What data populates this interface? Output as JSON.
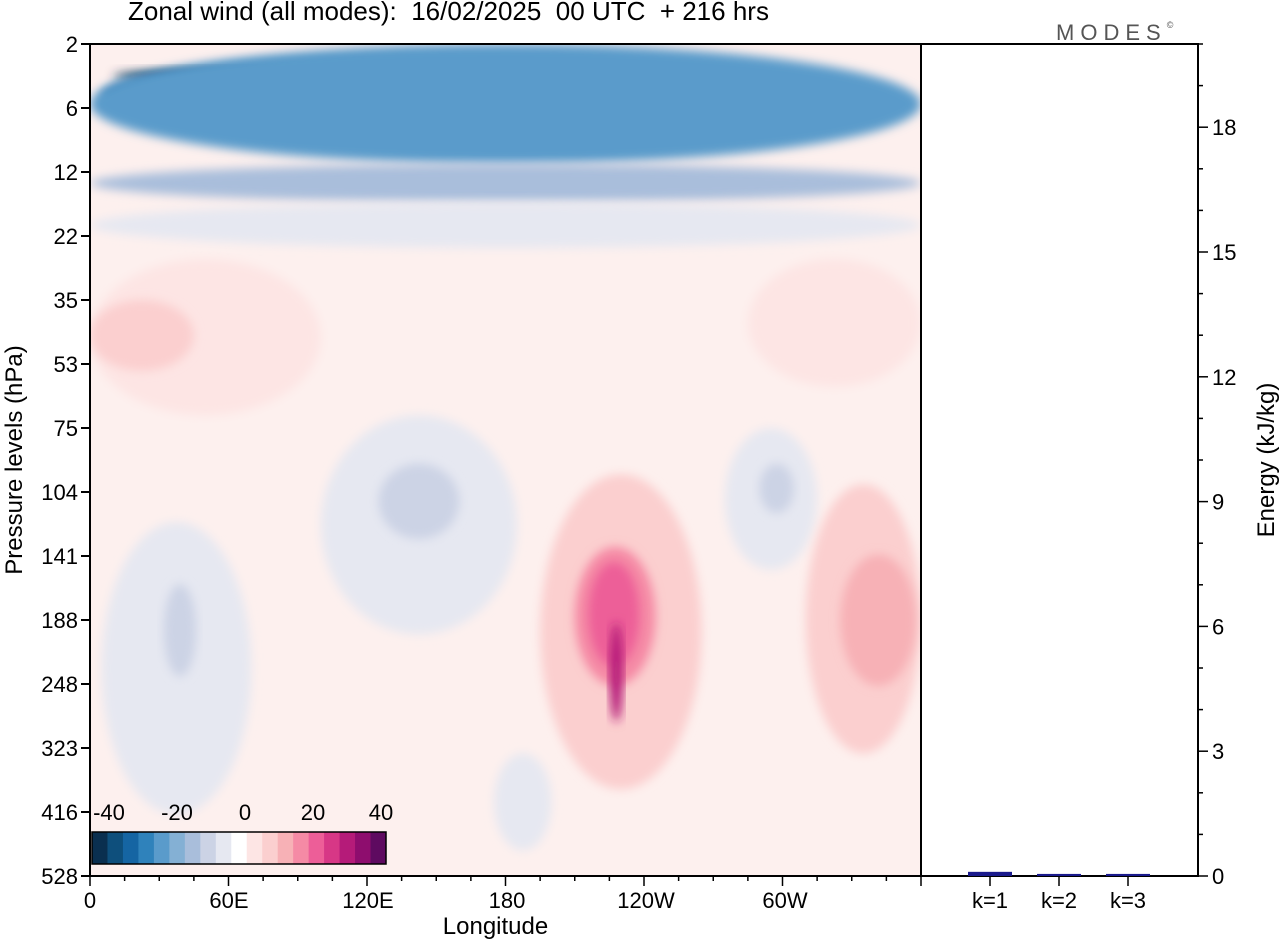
{
  "chart_data": [
    {
      "type": "heatmap",
      "title": "Zonal wind (all modes):  16/02/2025  00 UTC  + 216 hrs",
      "xlabel": "Longitude",
      "ylabel": "Pressure levels (hPa)",
      "x_ticks": [
        "0",
        "60E",
        "120E",
        "180",
        "120W",
        "60W"
      ],
      "y_ticks": [
        "2",
        "6",
        "12",
        "22",
        "35",
        "53",
        "75",
        "104",
        "141",
        "188",
        "248",
        "323",
        "416",
        "528"
      ],
      "colorbar": {
        "ticks": [
          "-40",
          "-20",
          "0",
          "20",
          "40"
        ],
        "colors": [
          "#0a2f4f",
          "#0e4f7c",
          "#1565a3",
          "#2f82bb",
          "#5a9bcb",
          "#84b0d4",
          "#a9bedb",
          "#ccd3e5",
          "#e6e8f1",
          "#ffffff",
          "#fde5e4",
          "#fbcfcf",
          "#f7b1b6",
          "#f58aa5",
          "#ed5e98",
          "#d73786",
          "#b51b79",
          "#8e0d6e",
          "#5e0a60"
        ],
        "range": [
          -40,
          40
        ]
      },
      "regions": [
        {
          "value": -38,
          "lon": [
            10,
            205
          ],
          "p": [
            3,
            4
          ]
        },
        {
          "value": -30,
          "lon": [
            5,
            300
          ],
          "p": [
            2.5,
            8
          ]
        },
        {
          "value": -24,
          "lon": [
            0,
            360
          ],
          "p": [
            2,
            11
          ]
        },
        {
          "value": -14,
          "lon": [
            0,
            360
          ],
          "p": [
            11,
            16
          ]
        },
        {
          "value": -4,
          "lon": [
            0,
            360
          ],
          "p": [
            16,
            24
          ]
        },
        {
          "value": 6,
          "lon": [
            0,
            100
          ],
          "p": [
            26,
            70
          ]
        },
        {
          "value": 10,
          "lon": [
            0,
            45
          ],
          "p": [
            35,
            55
          ]
        },
        {
          "value": -6,
          "lon": [
            100,
            185
          ],
          "p": [
            70,
            200
          ]
        },
        {
          "value": -9,
          "lon": [
            125,
            160
          ],
          "p": [
            90,
            130
          ]
        },
        {
          "value": -6,
          "lon": [
            5,
            70
          ],
          "p": [
            120,
            420
          ]
        },
        {
          "value": -9,
          "lon": [
            32,
            46
          ],
          "p": [
            160,
            240
          ]
        },
        {
          "value": 8,
          "lon": [
            195,
            265
          ],
          "p": [
            95,
            380
          ]
        },
        {
          "value": 16,
          "lon": [
            210,
            245
          ],
          "p": [
            135,
            250
          ]
        },
        {
          "value": 24,
          "lon": [
            216,
            238
          ],
          "p": [
            145,
            230
          ]
        },
        {
          "value": 32,
          "lon": [
            225,
            231
          ],
          "p": [
            190,
            290
          ]
        },
        {
          "value": -6,
          "lon": [
            275,
            315
          ],
          "p": [
            75,
            150
          ]
        },
        {
          "value": -9,
          "lon": [
            290,
            305
          ],
          "p": [
            90,
            115
          ]
        },
        {
          "value": 8,
          "lon": [
            310,
            360
          ],
          "p": [
            100,
            330
          ]
        },
        {
          "value": 14,
          "lon": [
            325,
            358
          ],
          "p": [
            140,
            250
          ]
        },
        {
          "value": 6,
          "lon": [
            285,
            360
          ],
          "p": [
            26,
            60
          ]
        },
        {
          "value": -5,
          "lon": [
            175,
            200
          ],
          "p": [
            330,
            480
          ]
        }
      ]
    },
    {
      "type": "bar",
      "ylabel": "Energy (kJ/kg)",
      "categories": [
        "k=1",
        "k=2",
        "k=3"
      ],
      "values": [
        0.1,
        0.05,
        0.05
      ],
      "ylim": [
        0,
        20
      ],
      "y_ticks": [
        "0",
        "3",
        "6",
        "9",
        "12",
        "15",
        "18"
      ],
      "bar_color": "#1a1a8c"
    }
  ],
  "logo": "MODES",
  "logo_mark": "©"
}
